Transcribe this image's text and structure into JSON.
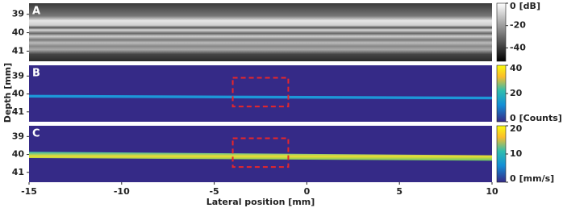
{
  "chart_data": {
    "x_label": "Lateral position [mm]",
    "y_label": "Depth [mm]",
    "xlim": [
      -15,
      10
    ],
    "xticks": [
      -15,
      -10,
      -5,
      0,
      5,
      10
    ],
    "panels": [
      {
        "type": "heatmap",
        "label": "A",
        "colormap": "gray",
        "ylim": [
          38.4,
          41.55
        ],
        "yticks": [
          39,
          40,
          41
        ],
        "colorbar_lim": [
          -52,
          0
        ],
        "colorbar_ticks": [
          0,
          -20,
          -40
        ],
        "colorbar_unit": "[dB]"
      },
      {
        "type": "heatmap",
        "label": "B",
        "colormap": "parula",
        "ylim": [
          38.4,
          41.55
        ],
        "yticks": [
          39,
          40,
          41
        ],
        "colorbar_lim": [
          0,
          40
        ],
        "colorbar_ticks": [
          40,
          20,
          0
        ],
        "colorbar_unit": "[Counts]",
        "roi": {
          "x": [
            -4,
            -1
          ],
          "y": [
            39.1,
            40.7
          ],
          "color": "#e8262a"
        }
      },
      {
        "type": "heatmap",
        "label": "C",
        "colormap": "parula",
        "ylim": [
          38.4,
          41.55
        ],
        "yticks": [
          39,
          40,
          41
        ],
        "colorbar_lim": [
          0,
          20
        ],
        "colorbar_ticks": [
          20,
          10,
          0
        ],
        "colorbar_unit": "[mm/s]",
        "roi": {
          "x": [
            -4,
            -1
          ],
          "y": [
            39.1,
            40.7
          ],
          "color": "#e8262a"
        }
      }
    ]
  }
}
